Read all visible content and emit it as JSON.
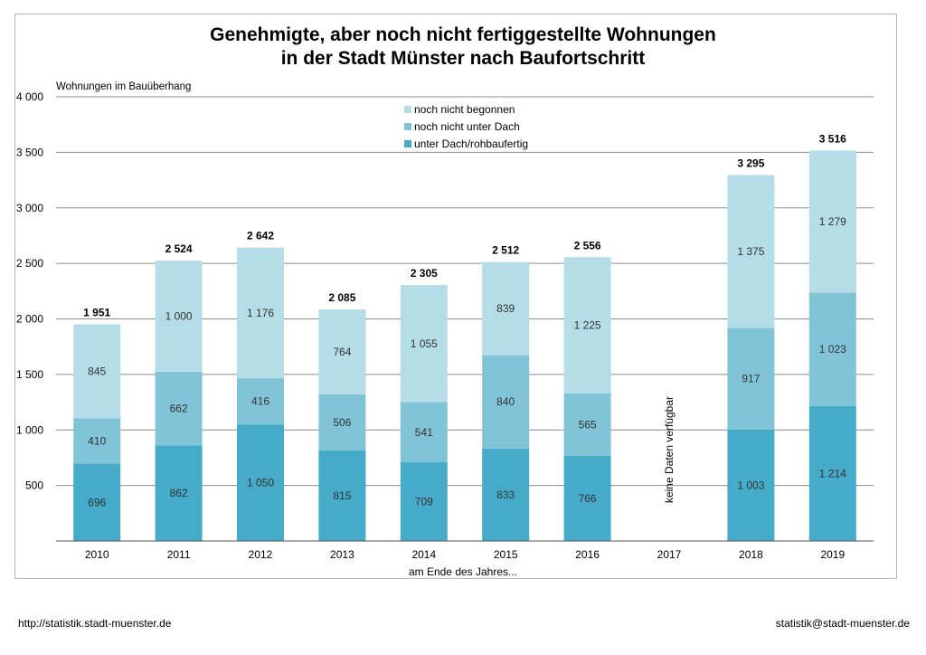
{
  "title_lines": [
    "Genehmigte, aber noch nicht fertiggestellte Wohnungen",
    "in der Stadt Münster nach Baufortschritt"
  ],
  "footer": {
    "left": "http://statistik.stadt-muenster.de",
    "right": "statistik@stadt-muenster.de"
  },
  "colors": {
    "unter_dach": "#45abc8",
    "nicht_unter_dach": "#82c4d7",
    "nicht_begonnen": "#b5dde8",
    "grid": "#8c8c8c"
  },
  "chart_data": {
    "type": "bar",
    "stacked": true,
    "title": "Genehmigte, aber noch nicht fertiggestellte Wohnungen in der Stadt Münster nach Baufortschritt",
    "ylabel": "Wohnungen im Bauüberhang",
    "xlabel": "am Ende des Jahres...",
    "ylim": [
      0,
      4000
    ],
    "yticks": [
      500,
      1000,
      1500,
      2000,
      2500,
      3000,
      3500,
      4000
    ],
    "ytick_labels": [
      "500",
      "1 000",
      "1 500",
      "2 000",
      "2 500",
      "3 000",
      "3 500",
      "4 000"
    ],
    "grid": true,
    "legend_position": "top-center",
    "categories": [
      "2010",
      "2011",
      "2012",
      "2013",
      "2014",
      "2015",
      "2016",
      "2017",
      "2018",
      "2019"
    ],
    "series": [
      {
        "name": "unter Dach/rohbaufertig",
        "color": "#45abc8",
        "values": [
          696,
          862,
          1050,
          815,
          709,
          833,
          766,
          null,
          1003,
          1214
        ],
        "labels": [
          "696",
          "862",
          "1 050",
          "815",
          "709",
          "833",
          "766",
          "",
          "1 003",
          "1 214"
        ]
      },
      {
        "name": "noch nicht unter Dach",
        "color": "#82c4d7",
        "values": [
          410,
          662,
          416,
          506,
          541,
          840,
          565,
          null,
          917,
          1023
        ],
        "labels": [
          "410",
          "662",
          "416",
          "506",
          "541",
          "840",
          "565",
          "",
          "917",
          "1 023"
        ]
      },
      {
        "name": "noch nicht begonnen",
        "color": "#b5dde8",
        "values": [
          845,
          1000,
          1176,
          764,
          1055,
          839,
          1225,
          null,
          1375,
          1279
        ],
        "labels": [
          "845",
          "1 000",
          "1 176",
          "764",
          "1 055",
          "839",
          "1 225",
          "",
          "1 375",
          "1 279"
        ]
      }
    ],
    "totals": [
      1951,
      2524,
      2642,
      2085,
      2305,
      2512,
      2556,
      null,
      3295,
      3516
    ],
    "total_labels": [
      "1 951",
      "2 524",
      "2 642",
      "2 085",
      "2 305",
      "2 512",
      "2 556",
      "",
      "3 295",
      "3 516"
    ],
    "annotations": [
      {
        "category": "2017",
        "text": "keine Daten verfügbar"
      }
    ]
  }
}
